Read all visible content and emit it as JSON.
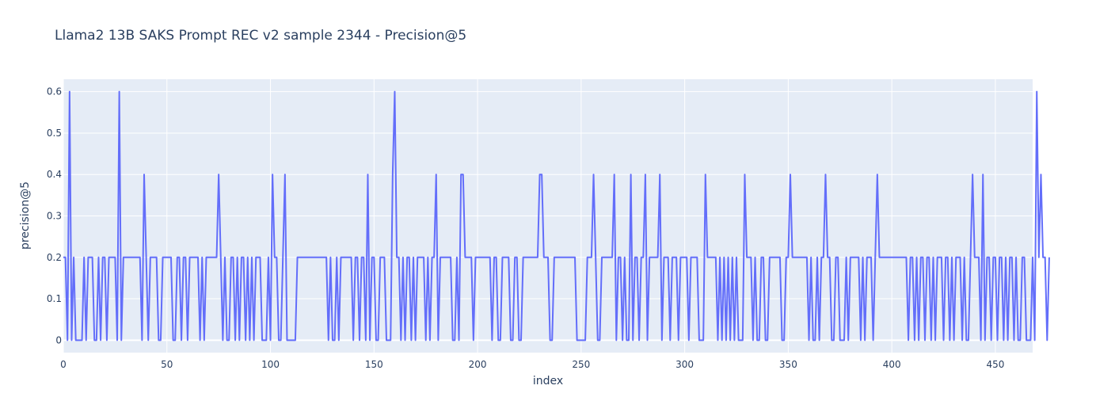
{
  "chart_data": {
    "type": "line",
    "title": "Llama2 13B SAKS Prompt REC v2 sample 2344 - Precision@5",
    "xlabel": "index",
    "ylabel": "precision@5",
    "xlim": [
      0,
      468
    ],
    "ylim": [
      -0.03,
      0.63
    ],
    "xticks": [
      0,
      50,
      100,
      150,
      200,
      250,
      300,
      350,
      400,
      450
    ],
    "yticks": [
      0,
      0.1,
      0.2,
      0.3,
      0.4,
      0.5,
      0.6
    ],
    "ytick_labels": [
      "0",
      "0.1",
      "0.2",
      "0.3",
      "0.4",
      "0.5",
      "0.6"
    ],
    "grid": true,
    "colors": {
      "plot_bg": "#e5ecf6",
      "grid": "#ffffff",
      "line": "#636efa",
      "text": "#2a3f5f"
    },
    "series": [
      {
        "x_start": 0,
        "values": [
          0.2,
          0.2,
          0,
          0.6,
          0,
          0.2,
          0,
          0,
          0,
          0,
          0.2,
          0,
          0.2,
          0.2,
          0.2,
          0,
          0,
          0.2,
          0,
          0.2,
          0.2,
          0,
          0.2,
          0.2,
          0.2,
          0.2,
          0,
          0.6,
          0,
          0.2,
          0.2,
          0.2,
          0.2,
          0.2,
          0.2,
          0.2,
          0.2,
          0.2,
          0,
          0.4,
          0.2,
          0,
          0.2,
          0.2,
          0.2,
          0.2,
          0,
          0,
          0.2,
          0.2,
          0.2,
          0.2,
          0.2,
          0,
          0,
          0.2,
          0.2,
          0,
          0.2,
          0.2,
          0,
          0.2,
          0.2,
          0.2,
          0.2,
          0.2,
          0,
          0.2,
          0,
          0.2,
          0.2,
          0.2,
          0.2,
          0.2,
          0.2,
          0.4,
          0.2,
          0,
          0.2,
          0,
          0,
          0.2,
          0.2,
          0,
          0.2,
          0,
          0.2,
          0.2,
          0,
          0.2,
          0,
          0.2,
          0,
          0.2,
          0.2,
          0.2,
          0,
          0,
          0,
          0.2,
          0,
          0.4,
          0.2,
          0.2,
          0,
          0,
          0.2,
          0.4,
          0,
          0,
          0,
          0,
          0,
          0.2,
          0.2,
          0.2,
          0.2,
          0.2,
          0.2,
          0.2,
          0.2,
          0.2,
          0.2,
          0.2,
          0.2,
          0.2,
          0.2,
          0.2,
          0,
          0.2,
          0,
          0,
          0.2,
          0,
          0.2,
          0.2,
          0.2,
          0.2,
          0.2,
          0.2,
          0,
          0.2,
          0.2,
          0,
          0.2,
          0.2,
          0,
          0.4,
          0,
          0.2,
          0.2,
          0,
          0,
          0.2,
          0.2,
          0.2,
          0,
          0,
          0,
          0.4,
          0.6,
          0.2,
          0.2,
          0,
          0.2,
          0,
          0.2,
          0.2,
          0,
          0.2,
          0,
          0.2,
          0.2,
          0.2,
          0.2,
          0,
          0.2,
          0,
          0.2,
          0.2,
          0.4,
          0,
          0.2,
          0.2,
          0.2,
          0.2,
          0.2,
          0.2,
          0,
          0,
          0.2,
          0,
          0.4,
          0.4,
          0.2,
          0.2,
          0.2,
          0.2,
          0,
          0.2,
          0.2,
          0.2,
          0.2,
          0.2,
          0.2,
          0.2,
          0.2,
          0,
          0.2,
          0.2,
          0,
          0,
          0.2,
          0.2,
          0.2,
          0.2,
          0,
          0,
          0.2,
          0.2,
          0,
          0,
          0.2,
          0.2,
          0.2,
          0.2,
          0.2,
          0.2,
          0.2,
          0.2,
          0.4,
          0.4,
          0.2,
          0.2,
          0.2,
          0,
          0,
          0.2,
          0.2,
          0.2,
          0.2,
          0.2,
          0.2,
          0.2,
          0.2,
          0.2,
          0.2,
          0.2,
          0,
          0,
          0,
          0,
          0,
          0.2,
          0.2,
          0.2,
          0.4,
          0.2,
          0,
          0,
          0.2,
          0.2,
          0.2,
          0.2,
          0.2,
          0.2,
          0.4,
          0,
          0.2,
          0.2,
          0,
          0.2,
          0,
          0,
          0.4,
          0,
          0.2,
          0.2,
          0,
          0.2,
          0.2,
          0.4,
          0,
          0.2,
          0.2,
          0.2,
          0.2,
          0.2,
          0.4,
          0,
          0.2,
          0.2,
          0.2,
          0,
          0.2,
          0.2,
          0.2,
          0,
          0.2,
          0.2,
          0.2,
          0.2,
          0,
          0.2,
          0.2,
          0.2,
          0.2,
          0,
          0,
          0,
          0.4,
          0.2,
          0.2,
          0.2,
          0.2,
          0.2,
          0,
          0.2,
          0,
          0.2,
          0,
          0.2,
          0,
          0.2,
          0,
          0.2,
          0,
          0,
          0,
          0.4,
          0.2,
          0.2,
          0.2,
          0,
          0.2,
          0,
          0,
          0.2,
          0.2,
          0,
          0,
          0.2,
          0.2,
          0.2,
          0.2,
          0.2,
          0.2,
          0,
          0,
          0.2,
          0.2,
          0.4,
          0.2,
          0.2,
          0.2,
          0.2,
          0.2,
          0.2,
          0.2,
          0.2,
          0,
          0.2,
          0,
          0,
          0.2,
          0,
          0.2,
          0.2,
          0.4,
          0.2,
          0.2,
          0,
          0,
          0.2,
          0.2,
          0,
          0,
          0,
          0.2,
          0,
          0.2,
          0.2,
          0.2,
          0.2,
          0.2,
          0,
          0.2,
          0,
          0.2,
          0.2,
          0.2,
          0,
          0.2,
          0.4,
          0.2,
          0.2,
          0.2,
          0.2,
          0.2,
          0.2,
          0.2,
          0.2,
          0.2,
          0.2,
          0.2,
          0.2,
          0.2,
          0.2,
          0,
          0.2,
          0.2,
          0,
          0.2,
          0,
          0.2,
          0.2,
          0,
          0.2,
          0.2,
          0,
          0.2,
          0,
          0.2,
          0.2,
          0.2,
          0,
          0.2,
          0.2,
          0,
          0.2,
          0,
          0.2,
          0.2,
          0.2,
          0,
          0.2,
          0,
          0,
          0.2,
          0.4,
          0.2,
          0.2,
          0.2,
          0,
          0.4,
          0,
          0.2,
          0.2,
          0,
          0.2,
          0.2,
          0,
          0.2,
          0.2,
          0,
          0.2,
          0,
          0.2,
          0.2,
          0,
          0.2,
          0,
          0,
          0.2,
          0.2,
          0,
          0,
          0,
          0.2,
          0,
          0.6,
          0.2,
          0.4,
          0.2,
          0.2,
          0,
          0.2
        ]
      }
    ]
  }
}
